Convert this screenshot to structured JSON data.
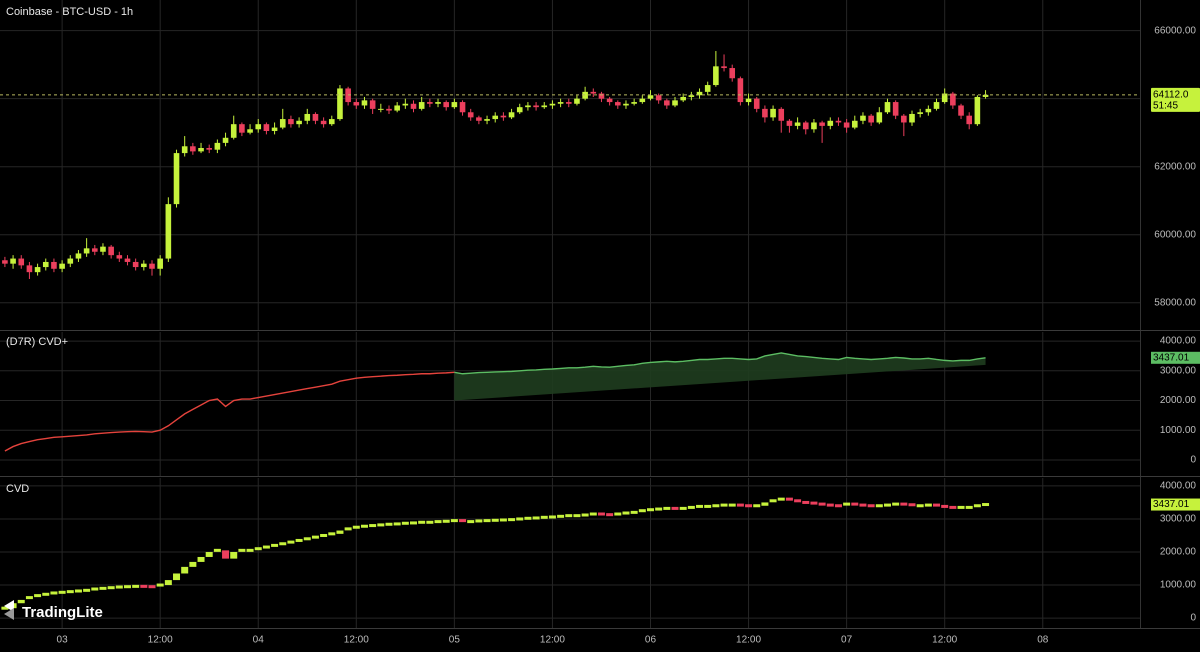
{
  "chart_data": [
    {
      "type": "candlestick",
      "title": "Coinbase - BTC-USD - 1h",
      "open": [
        59250,
        59150,
        59300,
        59100,
        58900,
        59050,
        59200,
        59000,
        59150,
        59300,
        59450,
        59600,
        59500,
        59650,
        59400,
        59300,
        59200,
        59050,
        59150,
        59000,
        59300,
        60900,
        62400,
        62600,
        62450,
        62550,
        62500,
        62700,
        62850,
        63250,
        63000,
        63100,
        63250,
        63050,
        63150,
        63400,
        63250,
        63350,
        63550,
        63350,
        63250,
        63400,
        64300,
        63900,
        63800,
        63950,
        63700,
        63700,
        63650,
        63800,
        63850,
        63700,
        63900,
        63850,
        63900,
        63750,
        63900,
        63600,
        63450,
        63350,
        63400,
        63500,
        63450,
        63600,
        63750,
        63800,
        63750,
        63800,
        63850,
        63900,
        63850,
        64000,
        64200,
        64150,
        64000,
        63900,
        63800,
        63850,
        63900,
        64000,
        64100,
        63950,
        63800,
        63950,
        64050,
        64100,
        64200,
        64400,
        64950,
        64900,
        64600,
        63900,
        64000,
        63700,
        63450,
        63700,
        63350,
        63200,
        63300,
        63100,
        63300,
        63200,
        63350,
        63300,
        63150,
        63350,
        63500,
        63300,
        63600,
        63900,
        63500,
        63300,
        63550,
        63600,
        63700,
        63900,
        64150,
        63800,
        63500,
        63250,
        64050
      ],
      "high": [
        59350,
        59400,
        59400,
        59200,
        59150,
        59300,
        59300,
        59250,
        59400,
        59550,
        59900,
        59700,
        59750,
        59700,
        59500,
        59400,
        59300,
        59250,
        59250,
        59400,
        61100,
        62500,
        62900,
        62700,
        62700,
        62650,
        62800,
        63000,
        63500,
        63300,
        63250,
        63400,
        63300,
        63300,
        63700,
        63500,
        63450,
        63700,
        63600,
        63450,
        63500,
        64400,
        64350,
        64000,
        64050,
        64000,
        63850,
        63800,
        63900,
        64000,
        63950,
        64050,
        64000,
        64000,
        63950,
        64000,
        63950,
        63700,
        63500,
        63500,
        63600,
        63600,
        63700,
        63850,
        63900,
        63900,
        63900,
        63950,
        64000,
        64000,
        64100,
        64350,
        64300,
        64200,
        64050,
        63950,
        63950,
        64000,
        64100,
        64250,
        64150,
        64000,
        64050,
        64150,
        64200,
        64300,
        64500,
        65400,
        65300,
        65000,
        64650,
        64150,
        64050,
        63800,
        63800,
        63750,
        63400,
        63450,
        63350,
        63400,
        63350,
        63450,
        63450,
        63400,
        63500,
        63600,
        63550,
        63750,
        64000,
        63950,
        63550,
        63650,
        63700,
        63800,
        64000,
        64300,
        64200,
        63850,
        63600,
        64100,
        64250
      ],
      "low": [
        59050,
        59000,
        59000,
        58700,
        58800,
        58950,
        58900,
        58900,
        59050,
        59200,
        59350,
        59400,
        59400,
        59300,
        59200,
        59100,
        58950,
        58950,
        58800,
        58800,
        59200,
        60800,
        62300,
        62350,
        62400,
        62400,
        62400,
        62600,
        62800,
        62900,
        62950,
        63000,
        62950,
        62950,
        63100,
        63150,
        63150,
        63250,
        63250,
        63150,
        63200,
        63350,
        63800,
        63700,
        63700,
        63550,
        63600,
        63550,
        63600,
        63700,
        63600,
        63650,
        63750,
        63750,
        63650,
        63700,
        63500,
        63350,
        63250,
        63250,
        63300,
        63350,
        63400,
        63550,
        63650,
        63650,
        63700,
        63700,
        63750,
        63750,
        63800,
        63950,
        64050,
        63900,
        63800,
        63700,
        63700,
        63800,
        63850,
        63950,
        63850,
        63700,
        63750,
        63900,
        63950,
        64000,
        64100,
        64350,
        64800,
        64500,
        63800,
        63800,
        63600,
        63300,
        63350,
        63000,
        63000,
        63100,
        62950,
        63000,
        62700,
        63100,
        63200,
        63000,
        63100,
        63250,
        63200,
        63250,
        63550,
        63400,
        62900,
        63200,
        63450,
        63500,
        63650,
        63850,
        63700,
        63400,
        63100,
        63200,
        64000
      ],
      "close": [
        59150,
        59300,
        59100,
        58900,
        59050,
        59200,
        59000,
        59150,
        59300,
        59450,
        59600,
        59500,
        59650,
        59400,
        59300,
        59200,
        59050,
        59150,
        59000,
        59300,
        60900,
        62400,
        62600,
        62450,
        62550,
        62500,
        62700,
        62850,
        63250,
        63000,
        63100,
        63250,
        63050,
        63150,
        63400,
        63250,
        63350,
        63550,
        63350,
        63250,
        63400,
        64300,
        63900,
        63800,
        63950,
        63700,
        63700,
        63650,
        63800,
        63850,
        63700,
        63900,
        63850,
        63900,
        63750,
        63900,
        63600,
        63450,
        63350,
        63400,
        63500,
        63450,
        63600,
        63750,
        63800,
        63750,
        63800,
        63850,
        63900,
        63850,
        64000,
        64200,
        64150,
        64000,
        63900,
        63800,
        63850,
        63900,
        64000,
        64100,
        63950,
        63800,
        63950,
        64050,
        64100,
        64200,
        64400,
        64950,
        64900,
        64600,
        63900,
        64000,
        63700,
        63450,
        63700,
        63350,
        63200,
        63300,
        63100,
        63300,
        63200,
        63350,
        63300,
        63150,
        63350,
        63500,
        63300,
        63600,
        63900,
        63500,
        63300,
        63550,
        63600,
        63700,
        63900,
        64150,
        63800,
        63500,
        63250,
        64050,
        64112
      ],
      "up_color": "#c6f23c",
      "down_color": "#ec3f5d",
      "ylim": [
        57200,
        66900
      ],
      "yticks": [
        {
          "value": 58000,
          "label": "58000.00"
        },
        {
          "value": 60000,
          "label": "60000.00"
        },
        {
          "value": 62000,
          "label": "62000.00"
        },
        {
          "value": 64000,
          "label": "64000.00"
        },
        {
          "value": 66000,
          "label": "66000.00"
        }
      ],
      "last_price": {
        "value": 64112,
        "label": "64112.0"
      },
      "countdown": "51:45",
      "grid": true
    },
    {
      "type": "line",
      "title": "(D7R) CVD+",
      "values": [
        300,
        450,
        550,
        620,
        680,
        720,
        760,
        780,
        800,
        820,
        840,
        880,
        900,
        920,
        940,
        950,
        960,
        950,
        940,
        1000,
        1150,
        1350,
        1550,
        1700,
        1850,
        2000,
        2050,
        1800,
        2000,
        2050,
        2050,
        2100,
        2150,
        2200,
        2250,
        2300,
        2350,
        2400,
        2450,
        2500,
        2550,
        2650,
        2700,
        2750,
        2780,
        2800,
        2820,
        2840,
        2850,
        2870,
        2880,
        2900,
        2900,
        2920,
        2930,
        2950,
        2900,
        2920,
        2940,
        2950,
        2960,
        2970,
        2980,
        3000,
        3020,
        3030,
        3050,
        3060,
        3080,
        3100,
        3100,
        3120,
        3150,
        3130,
        3120,
        3150,
        3180,
        3200,
        3250,
        3280,
        3300,
        3320,
        3300,
        3320,
        3350,
        3380,
        3380,
        3400,
        3420,
        3420,
        3400,
        3380,
        3400,
        3500,
        3550,
        3600,
        3550,
        3500,
        3480,
        3450,
        3420,
        3400,
        3380,
        3450,
        3420,
        3400,
        3380,
        3400,
        3420,
        3450,
        3430,
        3400,
        3400,
        3420,
        3380,
        3350,
        3330,
        3350,
        3350,
        3400,
        3437.01
      ],
      "colors": [
        "#e4433c",
        "#5cbd63"
      ],
      "color_change_index": 55,
      "trend": {
        "x": [
          55,
          120
        ],
        "values": [
          2000,
          3200
        ]
      },
      "area_color": "#1f3d1f",
      "ylim": [
        -540,
        4305
      ],
      "yticks": [
        0,
        {
          "value": 1000,
          "label": "1000.00"
        },
        {
          "value": 2000,
          "label": "2000.00"
        },
        {
          "value": 3000,
          "label": "3000.00"
        },
        {
          "value": 4000,
          "label": "4000.00"
        }
      ],
      "last_value": {
        "value": 3437.01,
        "label": "3437.01"
      },
      "grid": true
    },
    {
      "type": "cvd_candles",
      "title": "CVD",
      "values": [
        300,
        450,
        550,
        620,
        680,
        720,
        760,
        780,
        800,
        820,
        840,
        880,
        900,
        920,
        940,
        950,
        960,
        950,
        940,
        1000,
        1150,
        1350,
        1550,
        1700,
        1850,
        2000,
        2050,
        1800,
        2000,
        2050,
        2050,
        2100,
        2150,
        2200,
        2250,
        2300,
        2350,
        2400,
        2450,
        2500,
        2550,
        2650,
        2700,
        2750,
        2780,
        2800,
        2820,
        2840,
        2850,
        2870,
        2880,
        2900,
        2900,
        2920,
        2930,
        2950,
        2900,
        2920,
        2940,
        2950,
        2960,
        2970,
        2980,
        3000,
        3020,
        3030,
        3050,
        3060,
        3080,
        3100,
        3100,
        3120,
        3150,
        3130,
        3120,
        3150,
        3180,
        3200,
        3250,
        3280,
        3300,
        3320,
        3300,
        3320,
        3350,
        3380,
        3380,
        3400,
        3420,
        3420,
        3400,
        3380,
        3400,
        3500,
        3550,
        3600,
        3550,
        3500,
        3480,
        3450,
        3420,
        3400,
        3380,
        3450,
        3420,
        3400,
        3380,
        3400,
        3420,
        3450,
        3430,
        3400,
        3400,
        3420,
        3380,
        3350,
        3330,
        3350,
        3350,
        3400,
        3437.01
      ],
      "up_color": "#c6f23c",
      "down_color": "#ec3f5d",
      "ylim": [
        -300,
        4240
      ],
      "yticks": [
        0,
        {
          "value": 1000,
          "label": "1000.00"
        },
        {
          "value": 2000,
          "label": "2000.00"
        },
        {
          "value": 3000,
          "label": "3000.00"
        },
        {
          "value": 4000,
          "label": "4000.00"
        }
      ],
      "last_value": {
        "value": 3437.01,
        "label": "3437.01"
      },
      "grid": true
    }
  ],
  "x_axis": {
    "xlim": [
      -0.6,
      138.9
    ],
    "xticks": [
      {
        "value": 7,
        "label": "03"
      },
      {
        "value": 19,
        "label": "12:00"
      },
      {
        "value": 31,
        "label": "04"
      },
      {
        "value": 43,
        "label": "12:00"
      },
      {
        "value": 55,
        "label": "05"
      },
      {
        "value": 67,
        "label": "12:00"
      },
      {
        "value": 79,
        "label": "06"
      },
      {
        "value": 91,
        "label": "12:00"
      },
      {
        "value": 103,
        "label": "07"
      },
      {
        "value": 115,
        "label": "12:00"
      },
      {
        "value": 127,
        "label": "08"
      }
    ]
  },
  "brand": "TradingLite"
}
